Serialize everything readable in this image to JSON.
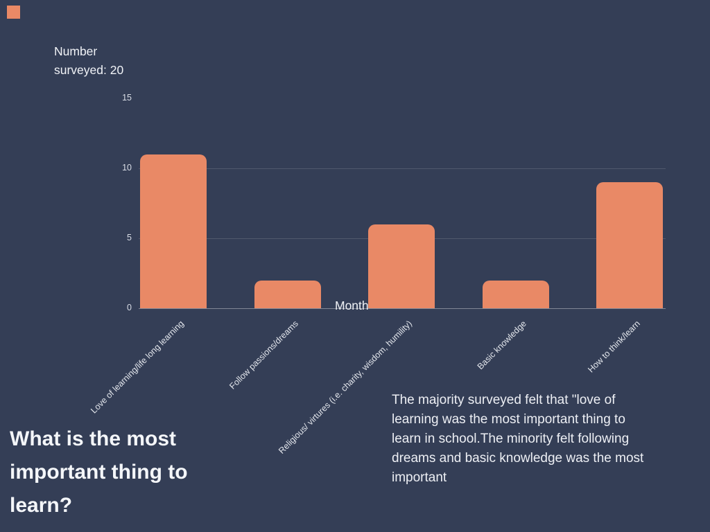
{
  "meta": {
    "background_color": "#343E56",
    "accent_color": "#E98966"
  },
  "header": {
    "surveyed_note": "Number surveyed: 20"
  },
  "chart_data": {
    "type": "bar",
    "title": "",
    "categories": [
      "Love of learning/life long learning",
      "Follow passions/dreams",
      "Religious/ virtures (i.e. charity, wisdom, humility)",
      "Basic knowledge",
      "How to think/learn"
    ],
    "values": [
      11,
      2,
      6,
      2,
      9
    ],
    "xlabel": "Month",
    "ylabel": "",
    "ylim": [
      0,
      15
    ],
    "yticks": [
      0,
      5,
      10,
      15
    ],
    "gridline_ticks": [
      5,
      10
    ],
    "bar_color": "#E98966",
    "grid": "horizontal",
    "legend": "none"
  },
  "slide": {
    "title": "What is the most important thing to learn?",
    "summary": "The majority surveyed felt that \"love of learning was the most important thing to learn in school.The minority felt following dreams and basic knowledge was the most important"
  }
}
